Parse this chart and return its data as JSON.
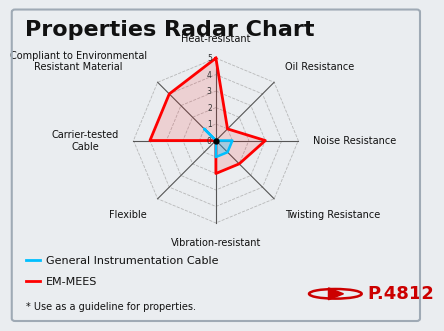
{
  "title": "Properties Radar Chart",
  "categories": [
    "Heat-resistant",
    "Oil Resistance",
    "Noise Resistance",
    "Twisting Resistance",
    "Vibration-resistant",
    "Flexible",
    "Carrier-tested\nCable",
    "Compliant to Environmental\nResistant Material"
  ],
  "em_mees": [
    5,
    1,
    3,
    2,
    2,
    0,
    4,
    4
  ],
  "gen_cable": [
    0,
    0,
    1,
    1,
    1,
    0,
    0,
    1
  ],
  "em_color": "#ff0000",
  "gen_color": "#00bfff",
  "em_label": "EM-MEES",
  "gen_label": "General Instrumentation Cable",
  "max_val": 5,
  "gridlines": [
    1,
    2,
    3,
    4,
    5
  ],
  "bg_color": "#eaedf0",
  "grid_color": "#aaaaaa",
  "title_fontsize": 16,
  "label_fontsize": 7,
  "legend_fontsize": 8,
  "p_label": "P.4812",
  "p_color": "#cc0000",
  "bottom_text3": "* Use as a guideline for properties."
}
